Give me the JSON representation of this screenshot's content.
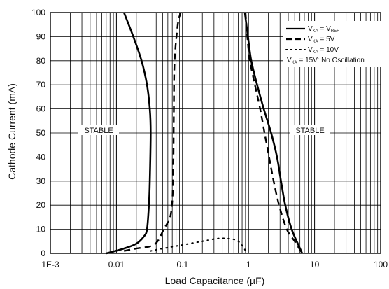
{
  "chart_data": {
    "type": "line",
    "title": "",
    "xlabel": "Load Capacitance (µF)",
    "ylabel": "Cathode Current (mA)",
    "xscale": "log",
    "xlim": [
      0.001,
      100
    ],
    "ylim": [
      0,
      100
    ],
    "grid": true,
    "x_tick_labels": [
      "1E-3",
      "0.01",
      "0.1",
      "1",
      "10",
      "100"
    ],
    "y_tick_labels": [
      "0",
      "10",
      "20",
      "30",
      "40",
      "50",
      "60",
      "70",
      "80",
      "90",
      "100"
    ],
    "legend_position": "top-right",
    "legend": [
      {
        "base": "V",
        "sub": "KA",
        "mid": " = V",
        "sub2": "REF",
        "tail": "",
        "style": "solid"
      },
      {
        "base": "V",
        "sub": "KA",
        "mid": " = 5V",
        "sub2": "",
        "tail": "",
        "style": "dash"
      },
      {
        "base": "V",
        "sub": "KA",
        "mid": " = 10V",
        "sub2": "",
        "tail": "",
        "style": "dot"
      },
      {
        "base": "V",
        "sub": "KA",
        "mid": " = 15V: No Oscillation",
        "sub2": "",
        "tail": "",
        "style": "none"
      }
    ],
    "annotations": [
      "STABLE",
      "STABLE"
    ],
    "series": [
      {
        "style": "solid",
        "segments": [
          [
            [
              0.007,
              0
            ],
            [
              0.013,
              2
            ],
            [
              0.02,
              4
            ],
            [
              0.026,
              7
            ],
            [
              0.029,
              10
            ],
            [
              0.031,
              20
            ],
            [
              0.032,
              30
            ],
            [
              0.033,
              50
            ],
            [
              0.032,
              60
            ],
            [
              0.029,
              70
            ],
            [
              0.024,
              80
            ],
            [
              0.018,
              90
            ],
            [
              0.013,
              100
            ]
          ],
          [
            [
              0.88,
              100
            ],
            [
              0.98,
              90
            ],
            [
              1.1,
              80
            ],
            [
              1.35,
              70
            ],
            [
              1.7,
              60
            ],
            [
              2.2,
              50
            ],
            [
              2.7,
              40
            ],
            [
              3.1,
              30
            ],
            [
              3.6,
              20
            ],
            [
              4.5,
              10
            ],
            [
              5.8,
              3
            ],
            [
              6.5,
              0
            ]
          ]
        ]
      },
      {
        "style": "dash",
        "segments": [
          [
            [
              0.013,
              1
            ],
            [
              0.02,
              2
            ],
            [
              0.033,
              3
            ],
            [
              0.042,
              5
            ],
            [
              0.052,
              10
            ],
            [
              0.063,
              14
            ],
            [
              0.068,
              18
            ],
            [
              0.071,
              25
            ],
            [
              0.073,
              40
            ],
            [
              0.074,
              60
            ],
            [
              0.076,
              80
            ],
            [
              0.085,
              95
            ],
            [
              0.094,
              100
            ]
          ],
          [
            [
              0.9,
              100
            ],
            [
              0.96,
              90
            ],
            [
              1.05,
              80
            ],
            [
              1.25,
              70
            ],
            [
              1.5,
              60
            ],
            [
              1.75,
              50
            ],
            [
              2.05,
              40
            ],
            [
              2.4,
              30
            ],
            [
              2.9,
              20
            ],
            [
              3.8,
              10
            ],
            [
              5.0,
              5
            ],
            [
              6.5,
              0
            ]
          ]
        ]
      },
      {
        "style": "dot",
        "segments": [
          [
            [
              0.033,
              1
            ],
            [
              0.05,
              2
            ],
            [
              0.1,
              3.5
            ],
            [
              0.2,
              5
            ],
            [
              0.35,
              6.2
            ],
            [
              0.55,
              6
            ],
            [
              0.7,
              5
            ],
            [
              0.82,
              3
            ],
            [
              0.9,
              1
            ]
          ]
        ]
      }
    ]
  }
}
